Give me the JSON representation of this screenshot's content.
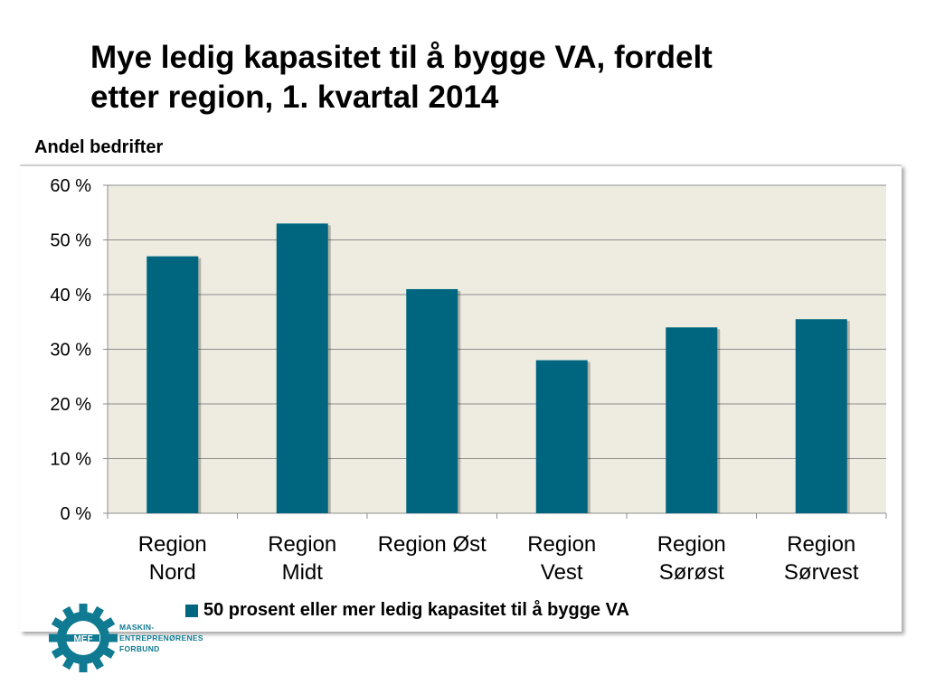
{
  "title_line1": "Mye ledig kapasitet til å bygge VA, fordelt",
  "title_line2": "etter region, 1. kvartal 2014",
  "axis_title": "Andel bedrifter",
  "logo": {
    "mark": "MEF",
    "line1": "MASKIN-",
    "line2": "ENTREPRENØRENES",
    "line3": "FORBUND"
  },
  "colors": {
    "bar": "#006680",
    "plot_bg": "#eeece1",
    "logo": "#0f7a91"
  },
  "chart_data": {
    "type": "bar",
    "categories": [
      [
        "Region",
        "Nord"
      ],
      [
        "Region",
        "Midt"
      ],
      [
        "Region Øst"
      ],
      [
        "Region",
        "Vest"
      ],
      [
        "Region",
        "Sørøst"
      ],
      [
        "Region",
        "Sørvest"
      ]
    ],
    "series": [
      {
        "name": "50 prosent eller mer ledig kapasitet til å bygge VA",
        "values": [
          0.47,
          0.53,
          0.41,
          0.28,
          0.34,
          0.355
        ]
      }
    ],
    "yticks": [
      "0 %",
      "10 %",
      "20 %",
      "30 %",
      "40 %",
      "50 %",
      "60 %"
    ],
    "ylim": [
      0,
      0.6
    ],
    "ylabel": "Andel bedrifter",
    "grid": true,
    "legend": "bottom"
  }
}
